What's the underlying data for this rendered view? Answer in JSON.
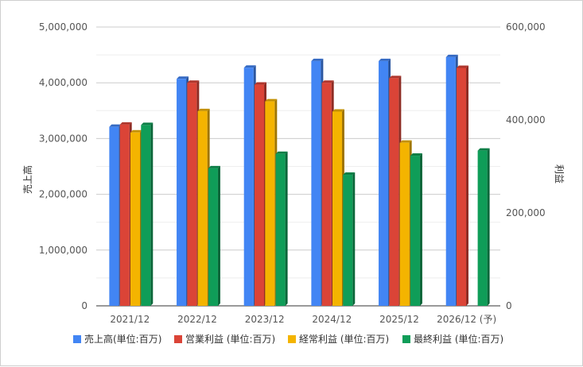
{
  "chart_data": {
    "type": "bar",
    "categories": [
      "2021/12",
      "2022/12",
      "2023/12",
      "2024/12",
      "2025/12",
      "2026/12 (予)"
    ],
    "left_axis": {
      "label": "売上高",
      "ylim": [
        0,
        5000000
      ],
      "ticks": [
        0,
        1000000,
        2000000,
        3000000,
        4000000,
        5000000
      ],
      "tick_labels": [
        "0",
        "1,000,000",
        "2,000,000",
        "3,000,000",
        "4,000,000",
        "5,000,000"
      ]
    },
    "right_axis": {
      "label": "利益",
      "ylim": [
        0,
        600000
      ],
      "ticks": [
        0,
        200000,
        400000,
        600000
      ],
      "tick_labels": [
        "0",
        "200,000",
        "400,000",
        "600,000"
      ]
    },
    "series": [
      {
        "name": "売上高(単位:百万)",
        "axis": "left",
        "color": "#4285f4",
        "values": [
          3210000,
          4070000,
          4270000,
          4390000,
          4390000,
          4460000
        ]
      },
      {
        "name": "営業利益 (単位:百万)",
        "axis": "right",
        "color": "#db4437",
        "values": [
          390000,
          480000,
          476000,
          480000,
          490000,
          512000
        ]
      },
      {
        "name": "経常利益 (単位:百万)",
        "axis": "right",
        "color": "#f4b400",
        "values": [
          373000,
          419000,
          440000,
          418000,
          351000,
          null
        ]
      },
      {
        "name": "最終利益 (単位:百万)",
        "axis": "right",
        "color": "#0f9d58",
        "values": [
          389000,
          296000,
          327000,
          282000,
          323000,
          334000
        ]
      }
    ],
    "grid": true,
    "legend_position": "bottom"
  }
}
